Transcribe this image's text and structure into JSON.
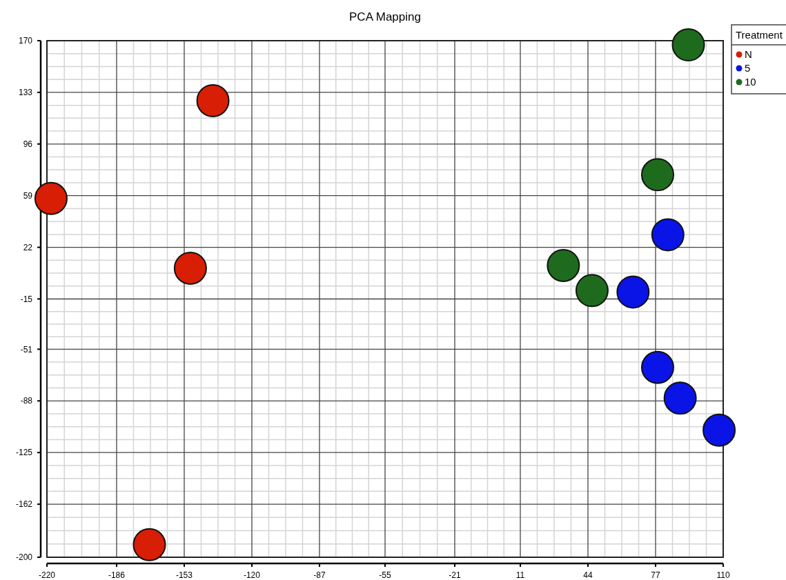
{
  "chart_data": {
    "type": "scatter",
    "title": "PCA Mapping",
    "legend_title": "Treatment",
    "legend": "top right",
    "grid": true,
    "marker": "circle",
    "xlim": [
      -220,
      110
    ],
    "xticks": [
      -220,
      -186,
      -153,
      -120,
      -87,
      -55,
      -21,
      11,
      44,
      77,
      110
    ],
    "ylim": [
      -200,
      170
    ],
    "yticks": [
      170,
      133,
      96,
      59,
      22,
      -15,
      -51,
      -88,
      -125,
      -162,
      -200
    ],
    "series": [
      {
        "name": "N",
        "color": "#d81e05",
        "x": [
          -218,
          -139,
          -150,
          -170
        ],
        "values": [
          57,
          127,
          7,
          -191
        ]
      },
      {
        "name": "5",
        "color": "#0a14e6",
        "x": [
          83,
          66,
          78,
          89,
          108
        ],
        "values": [
          31,
          -10,
          -64,
          -86,
          -109
        ]
      },
      {
        "name": "10",
        "color": "#1e6b1e",
        "x": [
          93,
          78,
          32,
          46
        ],
        "values": [
          167,
          74,
          9,
          -9
        ]
      }
    ]
  }
}
